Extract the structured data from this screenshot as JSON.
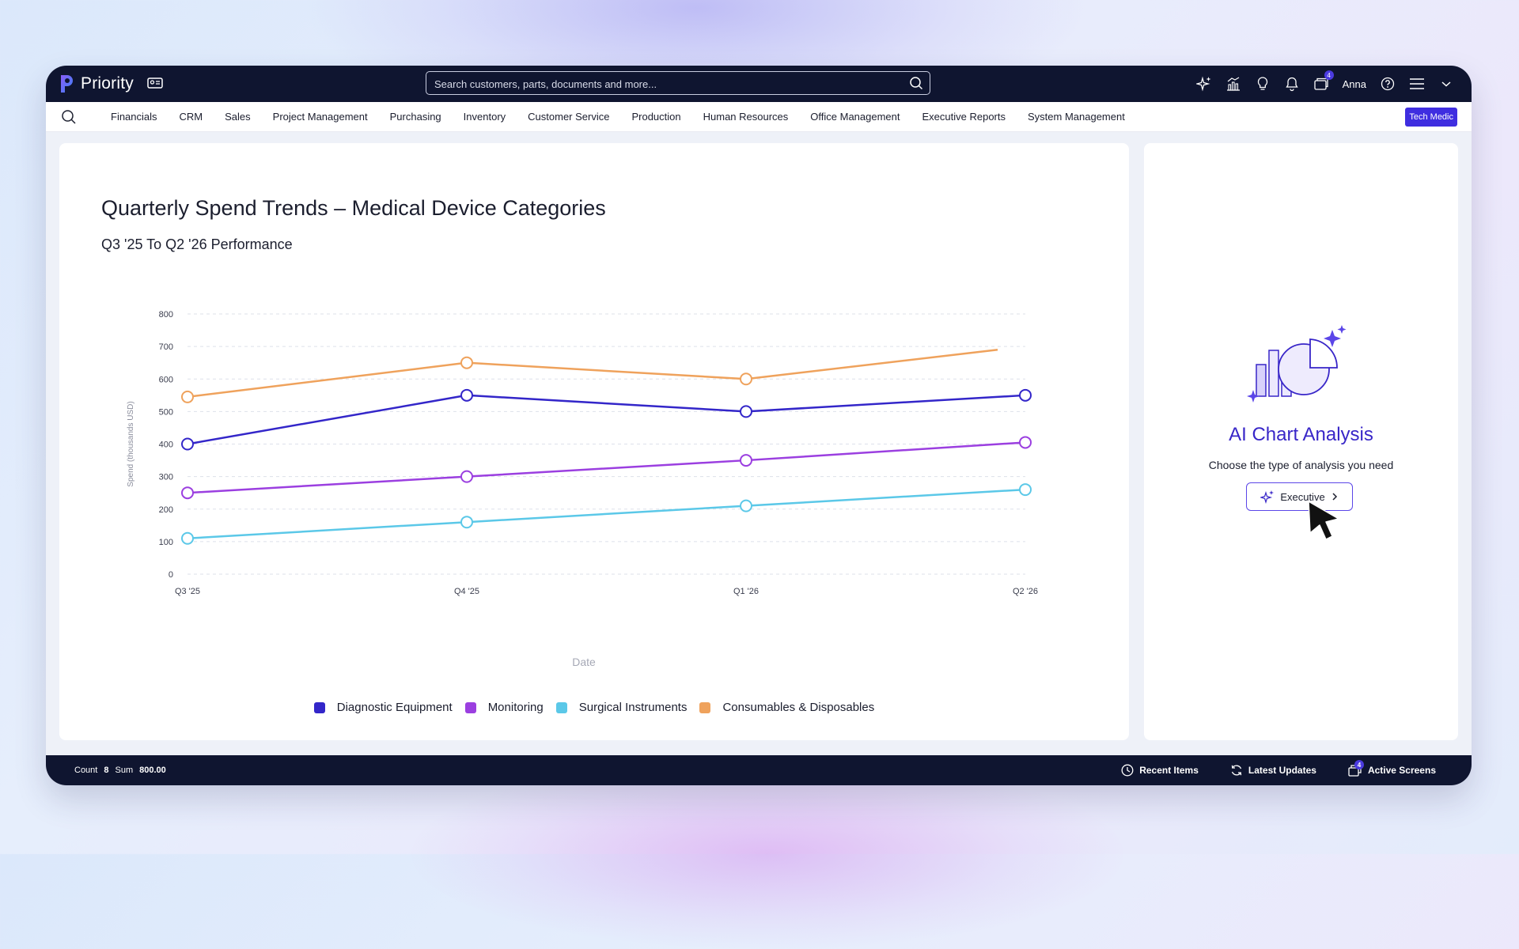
{
  "app": {
    "name": "Priority",
    "user": "Anna",
    "tenant": "Tech Medic"
  },
  "search": {
    "placeholder": "Search customers, parts, documents and more..."
  },
  "top_icons": [
    {
      "name": "ai-sparkle-icon"
    },
    {
      "name": "analytics-icon"
    },
    {
      "name": "lightbulb-icon"
    },
    {
      "name": "bell-icon"
    },
    {
      "name": "windows-icon",
      "badge": "4"
    }
  ],
  "menu": {
    "items": [
      "Financials",
      "CRM",
      "Sales",
      "Project Management",
      "Purchasing",
      "Inventory",
      "Customer Service",
      "Production",
      "Human Resources",
      "Office Management",
      "Executive Reports",
      "System Management"
    ]
  },
  "chart": {
    "title": "Quarterly Spend Trends – Medical Device Categories",
    "subtitle": "Q3 '25 To Q2 '26 Performance"
  },
  "chart_data": {
    "type": "line",
    "title": "Quarterly Spend Trends – Medical Device Categories",
    "subtitle": "Q3 '25 To Q2 '26 Performance",
    "xlabel": "Date",
    "ylabel": "Spend (thousands USD)",
    "categories": [
      "Q3 '25",
      "Q4 '25",
      "Q1 '26",
      "Q2 '26"
    ],
    "ylim": [
      0,
      800
    ],
    "yticks": [
      0,
      100,
      200,
      300,
      400,
      500,
      600,
      700,
      800
    ],
    "grid": true,
    "legend_position": "bottom-center",
    "series": [
      {
        "name": "Diagnostic Equipment",
        "color": "#3326c9",
        "values": [
          400,
          550,
          500,
          550
        ]
      },
      {
        "name": "Monitoring",
        "color": "#9b3fe0",
        "values": [
          250,
          300,
          350,
          405
        ]
      },
      {
        "name": "Surgical Instruments",
        "color": "#5bc8e8",
        "values": [
          110,
          160,
          210,
          260
        ]
      },
      {
        "name": "Consumables & Disposables",
        "color": "#efa25c",
        "values": [
          545,
          650,
          600,
          690
        ]
      }
    ]
  },
  "ai_panel": {
    "title": "AI Chart Analysis",
    "description": "Choose the type of analysis you need",
    "button_label": "Executive"
  },
  "status": {
    "count_label": "Count",
    "count_value": "8",
    "sum_label": "Sum",
    "sum_value": "800.00",
    "recent_items": "Recent Items",
    "latest_updates": "Latest Updates",
    "active_screens": "Active Screens",
    "active_screens_badge": "4"
  }
}
